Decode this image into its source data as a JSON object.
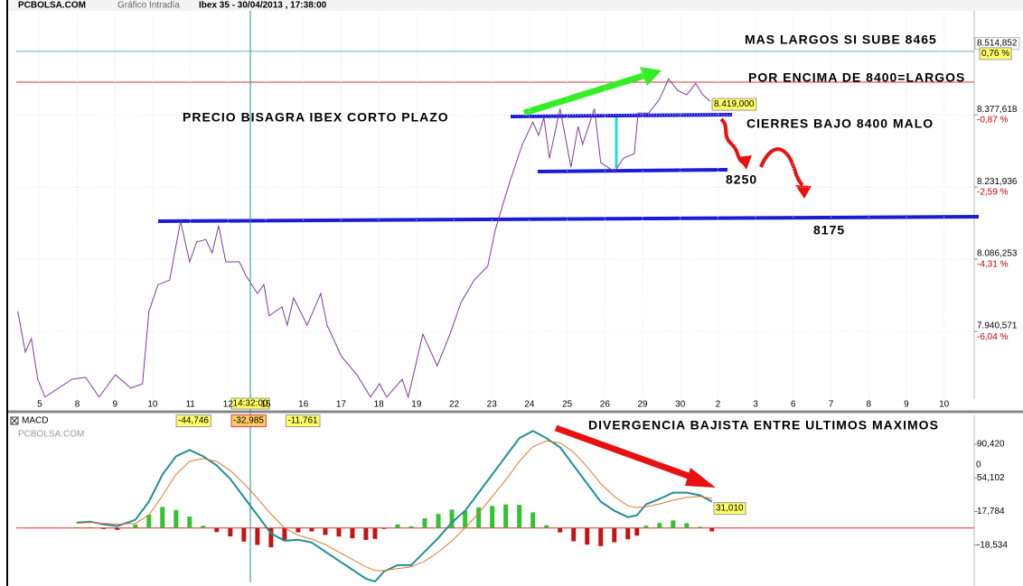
{
  "header": {
    "site": "PCBOLSA.COM",
    "chart_kind": "Gráfico Intradía",
    "instrument": "Ibex 35 - 30/04/2013 , 17:38:00"
  },
  "cursor_time": "14:32:00",
  "chart_data": [
    {
      "type": "line",
      "xlim": [
        -0.62,
        24.8
      ],
      "xticks": [
        {
          "value": 0,
          "label": "5"
        },
        {
          "value": 1,
          "label": "8"
        },
        {
          "value": 2,
          "label": "9"
        },
        {
          "value": 3,
          "label": "10"
        },
        {
          "value": 4,
          "label": "11"
        },
        {
          "value": 5,
          "label": "12"
        },
        {
          "value": 6,
          "label": "15"
        },
        {
          "value": 7,
          "label": "16"
        },
        {
          "value": 8,
          "label": "17"
        },
        {
          "value": 9,
          "label": "18"
        },
        {
          "value": 10,
          "label": "19"
        },
        {
          "value": 11,
          "label": "22"
        },
        {
          "value": 12,
          "label": "23"
        },
        {
          "value": 13,
          "label": "24"
        },
        {
          "value": 14,
          "label": "25"
        },
        {
          "value": 15,
          "label": "26"
        },
        {
          "value": 16,
          "label": "29"
        },
        {
          "value": 17,
          "label": "30"
        },
        {
          "value": 18,
          "label": "2"
        },
        {
          "value": 19,
          "label": "3"
        },
        {
          "value": 20,
          "label": "6"
        },
        {
          "value": 21,
          "label": "7"
        },
        {
          "value": 22,
          "label": "8"
        },
        {
          "value": 23,
          "label": "9"
        },
        {
          "value": 24,
          "label": "10"
        }
      ],
      "ylim": [
        7804,
        8582
      ],
      "yticks": [
        {
          "value": 8377.618,
          "label": "8.377,618"
        },
        {
          "value": 8231.936,
          "label": "8.231,936"
        },
        {
          "value": 8086.253,
          "label": "8.086,253"
        },
        {
          "value": 7940.571,
          "label": "7.940,571"
        }
      ],
      "y2lim": [
        -7.64,
        1.54
      ],
      "y2ticks": [
        {
          "value": -0.87,
          "label": "-0,87 %"
        },
        {
          "value": -2.59,
          "label": "-2,59 %"
        },
        {
          "value": -4.31,
          "label": "-4,31 %"
        },
        {
          "value": -6.04,
          "label": "-6,04 %"
        }
      ],
      "grid": true,
      "last_value": {
        "value": 8514.852,
        "label": "8.514,852"
      },
      "last_change": {
        "value": 0.76,
        "label": "0,76 %"
      },
      "marker_value": {
        "value": 8419,
        "label": "8.419,000"
      },
      "x": [
        -0.58,
        -0.38,
        -0.22,
        -0.05,
        0.14,
        0.86,
        1.22,
        1.58,
        2.01,
        2.42,
        2.73,
        2.9,
        3.14,
        3.45,
        3.74,
        3.98,
        4.17,
        4.41,
        4.58,
        4.75,
        4.94,
        5.3,
        5.47,
        5.78,
        5.95,
        6.09,
        6.43,
        6.57,
        6.74,
        7.1,
        7.46,
        7.63,
        8.01,
        8.42,
        8.78,
        9.02,
        9.21,
        9.62,
        9.78,
        10.17,
        10.55,
        10.89,
        11.18,
        11.53,
        11.89,
        12.09,
        12.45,
        12.81,
        13.09,
        13.24,
        13.38,
        13.53,
        13.81,
        14.1,
        14.29,
        14.41,
        14.72,
        14.89,
        15.25,
        15.49,
        15.78,
        15.88,
        16.16,
        16.45,
        16.69,
        16.93,
        17.17,
        17.41,
        17.6,
        17.79
      ],
      "series": [
        {
          "color": "#7a3c98",
          "values": [
            7981,
            7899,
            7926,
            7844,
            7808,
            7844,
            7848,
            7808,
            7853,
            7826,
            7835,
            7981,
            8035,
            8044,
            8163,
            8081,
            8121,
            8126,
            8099,
            8154,
            8081,
            8081,
            8054,
            8017,
            8035,
            7972,
            7990,
            7953,
            8008,
            7953,
            8017,
            7953,
            7890,
            7853,
            7808,
            7835,
            7808,
            7844,
            7808,
            7935,
            7871,
            7935,
            7999,
            8044,
            8072,
            8145,
            8236,
            8318,
            8363,
            8336,
            8372,
            8290,
            8390,
            8272,
            8354,
            8318,
            8390,
            8281,
            8263,
            8290,
            8299,
            8381,
            8381,
            8409,
            8450,
            8427,
            8418,
            8441,
            8418,
            8405
          ]
        }
      ],
      "annotations": [
        "MAS LARGOS SI SUBE 8465",
        "POR ENCIMA DE 8400=LARGOS",
        "PRECIO BISAGRA IBEX CORTO PLAZO",
        "CIERRES BAJO 8400 MALO",
        "8250",
        "8175"
      ]
    },
    {
      "type": "macd",
      "title": "MACD",
      "watermark": "PCBOLSA.COM",
      "xlim": [
        -0.62,
        24.8
      ],
      "ylim": [
        -58.8,
        107.1
      ],
      "yticks": [
        {
          "value": 90.42,
          "label": "90,420"
        },
        {
          "value": 54.102,
          "label": "54,102"
        },
        {
          "value": 17.784,
          "label": "17,784"
        },
        {
          "value": -18.534,
          "label": "-18,534"
        }
      ],
      "axis_fragment": "0",
      "readouts": [
        {
          "value": -44.746,
          "label": "-44,746"
        },
        {
          "value": -32.985,
          "label": "-32,985"
        },
        {
          "value": -11.761,
          "label": "-11,761"
        }
      ],
      "last_value": {
        "value": 31.01,
        "label": "31,010"
      },
      "x": [
        0.98,
        1.34,
        1.7,
        2.06,
        2.54,
        2.9,
        3.26,
        3.62,
        3.98,
        4.34,
        4.7,
        5.06,
        5.42,
        5.78,
        6.14,
        6.5,
        6.86,
        7.22,
        7.58,
        7.94,
        8.3,
        8.66,
        8.9,
        9.14,
        9.5,
        9.86,
        10.22,
        10.58,
        10.94,
        11.29,
        11.65,
        12.01,
        12.37,
        12.73,
        13.09,
        13.45,
        13.81,
        14.17,
        14.53,
        14.89,
        15.25,
        15.61,
        15.85,
        16.09,
        16.45,
        16.81,
        17.17,
        17.53,
        17.84
      ],
      "series": [
        {
          "color": "#1f8f96",
          "values": [
            5.9,
            6.9,
            3.9,
            2.0,
            8.8,
            28.4,
            57.8,
            77.4,
            84.3,
            77.4,
            67.6,
            52.9,
            33.3,
            13.7,
            -5.9,
            -13.7,
            -12.7,
            -15.7,
            -25.5,
            -35.3,
            -45.1,
            -54.9,
            -57.8,
            -47.0,
            -40.2,
            -40.2,
            -25.5,
            -10.8,
            5.9,
            18.6,
            38.2,
            57.8,
            77.4,
            97.0,
            104.9,
            97.0,
            87.2,
            67.6,
            48.0,
            28.4,
            18.6,
            11.8,
            13.7,
            25.5,
            31.4,
            38.2,
            38.2,
            35.3,
            28.4
          ]
        },
        {
          "color": "#e0782a",
          "values": [
            5,
            6,
            5,
            4,
            5,
            14,
            35,
            58,
            72,
            75,
            72,
            62,
            48,
            32,
            15,
            0,
            -8,
            -12,
            -18,
            -26,
            -34,
            -42,
            -46,
            -46,
            -44,
            -42,
            -36,
            -26,
            -14,
            0,
            16,
            34,
            52,
            72,
            88,
            94,
            92,
            82,
            66,
            48,
            34,
            24,
            22,
            23,
            26,
            30,
            33,
            34,
            32
          ]
        }
      ],
      "histogram": {
        "pos_color": "#33c233",
        "neg_color": "#c41414",
        "values": [
          0.9,
          0.9,
          -1.1,
          -2,
          3.8,
          14.4,
          22.8,
          19.4,
          12.3,
          2.4,
          -4.4,
          -9.1,
          -14.7,
          -18.3,
          -20.9,
          -13.7,
          -4.7,
          -3.7,
          -7.5,
          -9.3,
          -11.1,
          -12.9,
          -11.8,
          -1,
          3.8,
          1.8,
          10.5,
          15.2,
          19.9,
          18.6,
          22.2,
          23.8,
          25.4,
          25,
          16.9,
          3,
          -4.8,
          -14.4,
          -18,
          -19.6,
          -15.4,
          -12.2,
          -8.3,
          2.5,
          5.4,
          8.2,
          5.2,
          1.3,
          -3.6
        ]
      },
      "annotations": [
        "DIVERGENCIA BAJISTA ENTRE ULTIMOS MAXIMOS"
      ]
    }
  ]
}
